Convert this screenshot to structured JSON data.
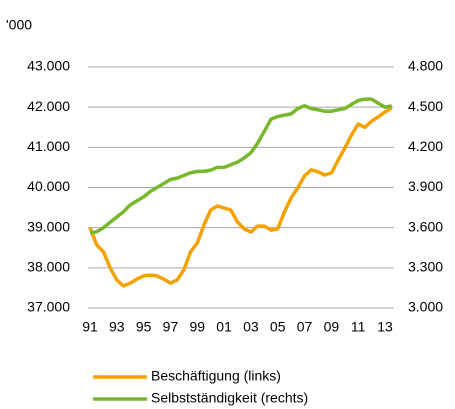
{
  "chart_data": {
    "type": "line",
    "unit_label": "'000",
    "x": [
      1991,
      1991.5,
      1992,
      1992.5,
      1993,
      1993.5,
      1994,
      1994.5,
      1995,
      1995.5,
      1996,
      1996.5,
      1997,
      1997.5,
      1998,
      1998.5,
      1999,
      1999.5,
      2000,
      2000.5,
      2001,
      2001.5,
      2002,
      2002.5,
      2003,
      2003.5,
      2004,
      2004.5,
      2005,
      2005.5,
      2006,
      2006.5,
      2007,
      2007.5,
      2008,
      2008.5,
      2009,
      2009.5,
      2010,
      2010.5,
      2011,
      2011.5,
      2012,
      2012.5,
      2013,
      2013.5
    ],
    "xlim": [
      1991,
      2013.5
    ],
    "xticks": [
      {
        "value": 1991,
        "label": "91"
      },
      {
        "value": 1993,
        "label": "93"
      },
      {
        "value": 1995,
        "label": "95"
      },
      {
        "value": 1997,
        "label": "97"
      },
      {
        "value": 1999,
        "label": "99"
      },
      {
        "value": 2001,
        "label": "01"
      },
      {
        "value": 2003,
        "label": "03"
      },
      {
        "value": 2005,
        "label": "05"
      },
      {
        "value": 2007,
        "label": "07"
      },
      {
        "value": 2009,
        "label": "09"
      },
      {
        "value": 2011,
        "label": "11"
      },
      {
        "value": 2013,
        "label": "13"
      }
    ],
    "ylim": [
      37000,
      43000
    ],
    "yticks": [
      {
        "value": 37000,
        "label": "37.000"
      },
      {
        "value": 38000,
        "label": "38.000"
      },
      {
        "value": 39000,
        "label": "39.000"
      },
      {
        "value": 40000,
        "label": "40.000"
      },
      {
        "value": 41000,
        "label": "41.000"
      },
      {
        "value": 42000,
        "label": "42.000"
      },
      {
        "value": 43000,
        "label": "43.000"
      }
    ],
    "y2lim": [
      3000,
      4800
    ],
    "y2ticks": [
      {
        "value": 3000,
        "label": "3.000"
      },
      {
        "value": 3300,
        "label": "3.300"
      },
      {
        "value": 3600,
        "label": "3.600"
      },
      {
        "value": 3900,
        "label": "3.900"
      },
      {
        "value": 4200,
        "label": "4.200"
      },
      {
        "value": 4500,
        "label": "4.500"
      },
      {
        "value": 4800,
        "label": "4.800"
      }
    ],
    "grid": true,
    "legend": "bottom",
    "series": [
      {
        "name": "Beschäftigung (links)",
        "color": "#f5a100",
        "axis": "y",
        "values": [
          39000,
          38570,
          38400,
          38000,
          37700,
          37550,
          37620,
          37720,
          37800,
          37820,
          37800,
          37720,
          37620,
          37700,
          37950,
          38400,
          38620,
          39070,
          39440,
          39540,
          39490,
          39440,
          39140,
          38970,
          38890,
          39040,
          39040,
          38940,
          38970,
          39390,
          39740,
          39990,
          40290,
          40440,
          40390,
          40310,
          40360,
          40680,
          40980,
          41310,
          41580,
          41500,
          41650,
          41760,
          41880,
          41980
        ]
      },
      {
        "name": "Selbstständigkeit (rechts)",
        "color": "#76b82a",
        "axis": "y2",
        "values": [
          3560,
          3570,
          3600,
          3640,
          3680,
          3720,
          3770,
          3800,
          3830,
          3870,
          3900,
          3930,
          3960,
          3970,
          3990,
          4010,
          4020,
          4020,
          4030,
          4050,
          4050,
          4070,
          4090,
          4120,
          4160,
          4230,
          4320,
          4410,
          4430,
          4440,
          4450,
          4490,
          4510,
          4490,
          4480,
          4470,
          4470,
          4480,
          4490,
          4520,
          4550,
          4560,
          4560,
          4530,
          4500,
          4510
        ]
      }
    ]
  }
}
